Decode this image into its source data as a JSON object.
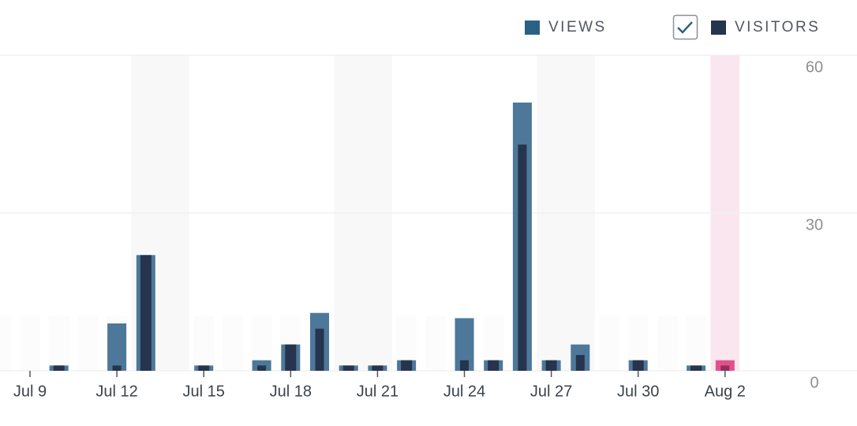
{
  "chart_data": {
    "type": "bar",
    "categories": [
      null,
      "Jul 9",
      null,
      null,
      "Jul 12",
      null,
      null,
      "Jul 15",
      null,
      null,
      "Jul 18",
      null,
      null,
      "Jul 21",
      null,
      null,
      "Jul 24",
      null,
      null,
      "Jul 27",
      null,
      null,
      "Jul 30",
      null,
      null,
      "Aug 2"
    ],
    "series": [
      {
        "name": "VIEWS",
        "color": "#4d7899",
        "values": [
          0,
          0,
          1,
          0,
          9,
          22,
          0,
          1,
          0,
          2,
          5,
          11,
          1,
          1,
          2,
          0,
          10,
          2,
          51,
          2,
          5,
          0,
          2,
          0,
          1,
          2
        ]
      },
      {
        "name": "VISITORS",
        "color": "#26344d",
        "values": [
          0,
          0,
          1,
          0,
          1,
          22,
          0,
          1,
          0,
          1,
          5,
          8,
          1,
          1,
          2,
          0,
          2,
          2,
          43,
          2,
          3,
          0,
          2,
          0,
          1,
          1
        ]
      }
    ],
    "legend_colors": [
      "#2a6185",
      "#26344d"
    ],
    "highlight_colors": [
      "#e0518b",
      "#9a2a5a"
    ],
    "ylim": [
      0,
      60
    ],
    "yticks": [
      0,
      30,
      60
    ],
    "grid": true
  }
}
